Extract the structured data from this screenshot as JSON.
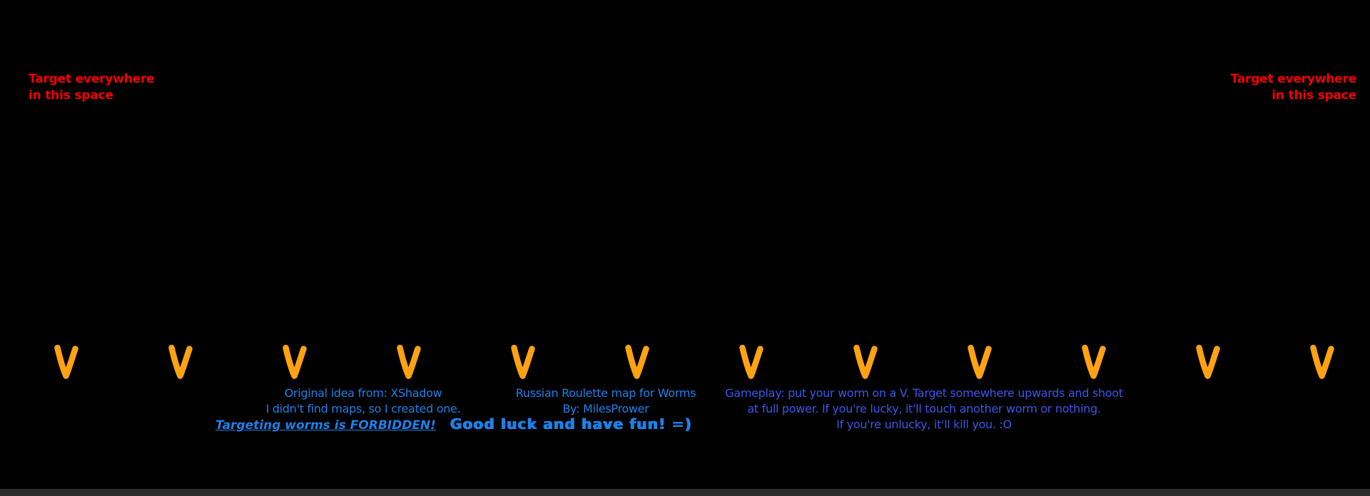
{
  "colors": {
    "background": "#000000",
    "red": "#f50000",
    "azure": "#1e80e8",
    "indigo": "#3a57e8",
    "orange": "#ffa212"
  },
  "corner_notes": {
    "top_left": {
      "line1": "Target everywhere",
      "line2": "in this space"
    },
    "top_right": {
      "line1": "Target everywhere",
      "line2": "in this space"
    }
  },
  "v_row": {
    "glyph": "V",
    "count": 12
  },
  "credits": {
    "line1": "Original idea from: XShadow",
    "line2": "I didn't find maps, so I created one.",
    "forbidden": "Targeting worms is FORBIDDEN!",
    "good_luck": "Good luck and have fun! =)"
  },
  "title_block": {
    "line1": "Russian Roulette map for Worms",
    "line2": "By: MilesPrower"
  },
  "gameplay": {
    "line1": "Gameplay: put your worm on a V. Target somewhere upwards and shoot",
    "line2": "at full power. If you're lucky, it'll touch another worm or nothing.",
    "line3": "If you're unlucky, it'll kill you. :O"
  }
}
